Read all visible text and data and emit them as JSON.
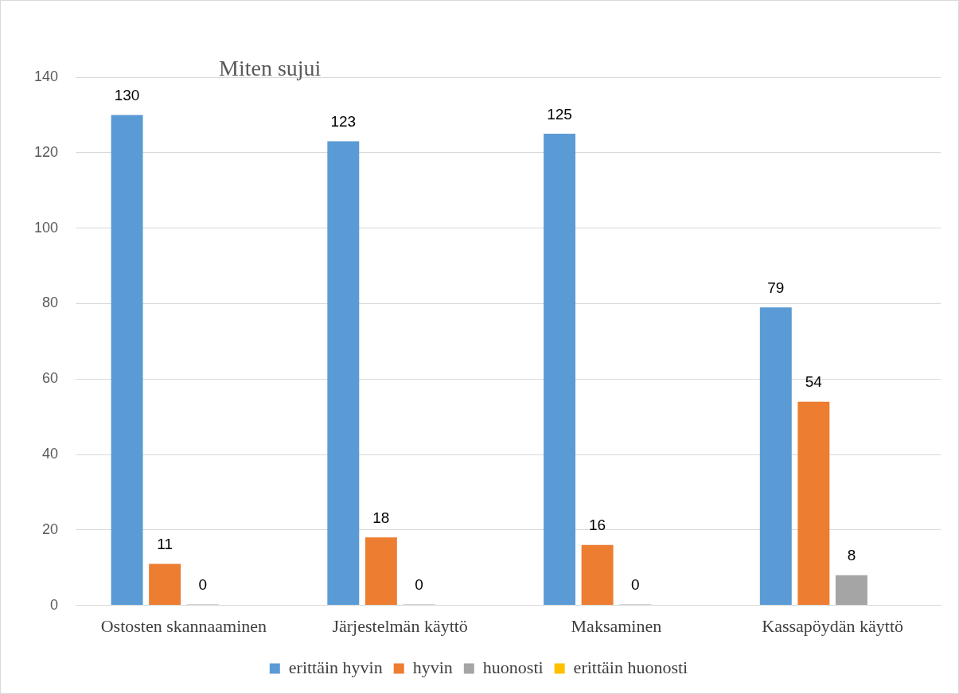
{
  "chart_data": {
    "type": "bar",
    "title": "Miten sujui",
    "categories": [
      "Ostosten skannaaminen",
      "Järjestelmän käyttö",
      "Maksaminen",
      "Kassapöydän käyttö"
    ],
    "series": [
      {
        "name": "erittäin hyvin",
        "color": "#5b9bd5",
        "values": [
          130,
          123,
          125,
          79
        ],
        "value_labels": [
          "130",
          "123",
          "125",
          "79"
        ]
      },
      {
        "name": "hyvin",
        "color": "#ed7d31",
        "values": [
          11,
          18,
          16,
          54
        ],
        "value_labels": [
          "11",
          "18",
          "16",
          "54"
        ]
      },
      {
        "name": "huonosti",
        "color": "#a5a5a5",
        "values": [
          0,
          0,
          0,
          8
        ],
        "value_labels": [
          "0",
          "0",
          "0",
          "8"
        ]
      },
      {
        "name": "erittäin huonosti",
        "color": "#ffc000",
        "values": [
          0,
          0,
          0,
          0
        ],
        "value_labels": [
          null,
          null,
          null,
          null
        ]
      }
    ],
    "ylim": [
      0,
      140
    ],
    "yticks": [
      0,
      20,
      40,
      60,
      80,
      100,
      120,
      140
    ],
    "grid": "y",
    "legend": "bottom"
  }
}
